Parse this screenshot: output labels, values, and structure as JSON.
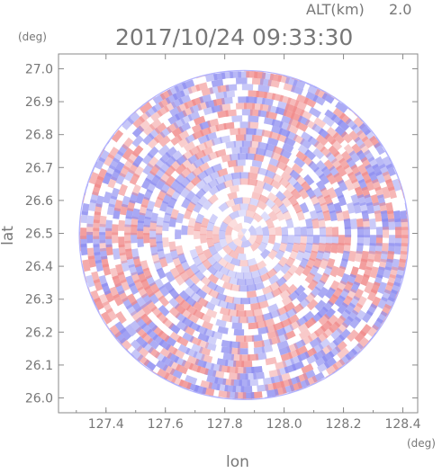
{
  "header": {
    "altitude_label": "ALT(km)",
    "altitude_value": "2.0",
    "timestamp": "2017/10/24 09:33:30"
  },
  "chart_data": {
    "type": "heatmap",
    "title": "2017/10/24 09:33:30",
    "xlabel": "lon",
    "ylabel": "lat",
    "x_unit": "(deg)",
    "y_unit": "(deg)",
    "xlim": [
      127.24,
      128.45
    ],
    "ylim": [
      25.955,
      27.045
    ],
    "x_ticks": [
      127.4,
      127.6,
      127.8,
      128.0,
      128.2,
      128.4
    ],
    "x_tick_labels": [
      "127.4",
      "127.6",
      "127.8",
      "128.0",
      "128.2",
      "128.4"
    ],
    "y_ticks": [
      26.0,
      26.1,
      26.2,
      26.3,
      26.4,
      26.5,
      26.6,
      26.7,
      26.8,
      26.9,
      27.0
    ],
    "y_tick_labels": [
      "26.0",
      "26.1",
      "26.2",
      "26.3",
      "26.4",
      "26.5",
      "26.6",
      "26.7",
      "26.8",
      "26.9",
      "27.0"
    ],
    "radar_center": {
      "lon": 127.865,
      "lat": 26.495
    },
    "radar_radius_deg_lat": 0.5,
    "field": "radial pattern of alternating positive/negative values",
    "colors": {
      "positive": "#f08a8a",
      "negative": "#8c8cf0",
      "zero": "#ffffff"
    },
    "grid": false
  }
}
